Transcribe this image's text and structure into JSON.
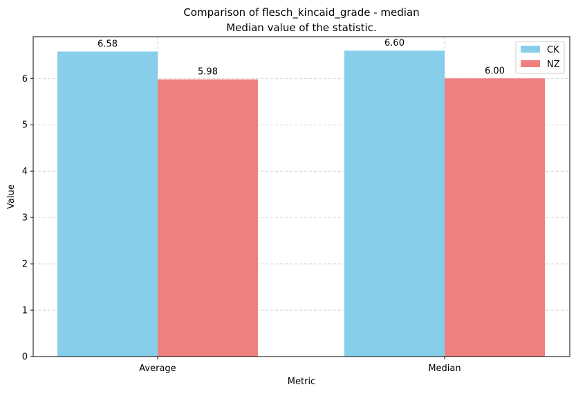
{
  "chart_data": {
    "type": "bar",
    "title": "Comparison of flesch_kincaid_grade - median",
    "subtitle": "Median value of the statistic.",
    "xlabel": "Metric",
    "ylabel": "Value",
    "categories": [
      "Average",
      "Median"
    ],
    "series": [
      {
        "name": "CK",
        "values": [
          6.58,
          6.6
        ],
        "labels": [
          "6.58",
          "6.60"
        ],
        "color": "#87CEEB"
      },
      {
        "name": "NZ",
        "values": [
          5.98,
          6.0
        ],
        "labels": [
          "5.98",
          "6.00"
        ],
        "color": "#F08080"
      }
    ],
    "ylim": [
      0,
      6.9
    ],
    "yticks": [
      0,
      1,
      2,
      3,
      4,
      5,
      6
    ],
    "grid": true,
    "legend_position": "top-right"
  }
}
